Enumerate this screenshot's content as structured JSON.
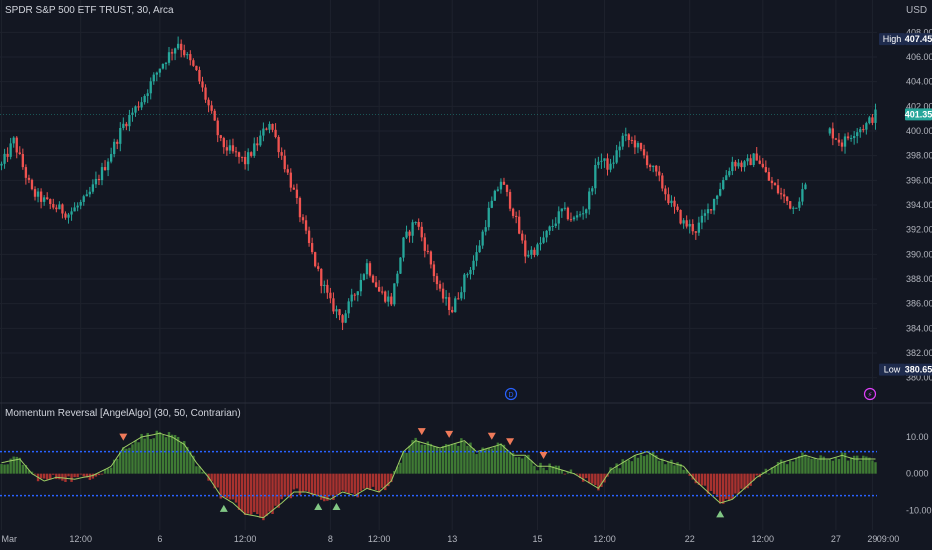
{
  "header": {
    "title": "SPDR S&P 500 ETF TRUST, 30, Arca",
    "currency": "USD",
    "indicator_title": "Momentum Reversal [AngelAlgo] (30, 50, Contrarian)"
  },
  "colors": {
    "background": "#131722",
    "up": "#26a69a",
    "down": "#ef5350",
    "osc_positive": "#3f7a34",
    "osc_negative": "#a8322f",
    "osc_line": "#9ccc65",
    "band": "#2962ff",
    "hl_tag": "#1e2b4d"
  },
  "tags": {
    "high_label": "High",
    "high_value": "407.45",
    "low_label": "Low",
    "low_value": "380.65",
    "last_value": "401.35"
  },
  "markers": {
    "dividend": "D",
    "split": "⚡"
  },
  "chart_data": [
    {
      "type": "candlestick",
      "title": "SPDR S&P 500 ETF TRUST, 30, Arca",
      "ylim": [
        379,
        409
      ],
      "y_ticks": [
        "380.00",
        "382.00",
        "384.00",
        "386.00",
        "388.00",
        "390.00",
        "392.00",
        "394.00",
        "396.00",
        "398.00",
        "400.00",
        "402.00",
        "404.00",
        "406.00",
        "408.00"
      ],
      "x_ticks": [
        "Mar",
        "12:00",
        "6",
        "12:00",
        "8",
        "12:00",
        "13",
        "15",
        "12:00",
        "22",
        "12:00",
        "27",
        "29",
        "09:00"
      ],
      "high": 407.45,
      "low": 380.65,
      "last": 401.35,
      "close_path": [
        {
          "t": 0,
          "v": 397.2
        },
        {
          "t": 4,
          "v": 399.2
        },
        {
          "t": 10,
          "v": 395.0
        },
        {
          "t": 16,
          "v": 394.0
        },
        {
          "t": 22,
          "v": 393.3
        },
        {
          "t": 28,
          "v": 394.5
        },
        {
          "t": 34,
          "v": 397.2
        },
        {
          "t": 40,
          "v": 400.5
        },
        {
          "t": 46,
          "v": 402.5
        },
        {
          "t": 52,
          "v": 405.2
        },
        {
          "t": 58,
          "v": 407.2
        },
        {
          "t": 64,
          "v": 404.7
        },
        {
          "t": 68,
          "v": 402.0
        },
        {
          "t": 72,
          "v": 399.0
        },
        {
          "t": 76,
          "v": 398.2
        },
        {
          "t": 80,
          "v": 397.5
        },
        {
          "t": 84,
          "v": 399.0
        },
        {
          "t": 88,
          "v": 400.8
        },
        {
          "t": 92,
          "v": 398.0
        },
        {
          "t": 96,
          "v": 395.0
        },
        {
          "t": 100,
          "v": 391.5
        },
        {
          "t": 104,
          "v": 388.5
        },
        {
          "t": 108,
          "v": 386.0
        },
        {
          "t": 112,
          "v": 384.8
        },
        {
          "t": 116,
          "v": 386.8
        },
        {
          "t": 120,
          "v": 389.2
        },
        {
          "t": 124,
          "v": 387.0
        },
        {
          "t": 128,
          "v": 386.2
        },
        {
          "t": 132,
          "v": 391.0
        },
        {
          "t": 136,
          "v": 392.8
        },
        {
          "t": 140,
          "v": 390.0
        },
        {
          "t": 144,
          "v": 386.8
        },
        {
          "t": 148,
          "v": 385.5
        },
        {
          "t": 152,
          "v": 388.0
        },
        {
          "t": 156,
          "v": 390.0
        },
        {
          "t": 160,
          "v": 393.5
        },
        {
          "t": 164,
          "v": 396.0
        },
        {
          "t": 168,
          "v": 393.5
        },
        {
          "t": 172,
          "v": 390.0
        },
        {
          "t": 176,
          "v": 390.5
        },
        {
          "t": 180,
          "v": 392.0
        },
        {
          "t": 184,
          "v": 393.5
        },
        {
          "t": 188,
          "v": 392.8
        },
        {
          "t": 192,
          "v": 393.8
        },
        {
          "t": 196,
          "v": 397.8
        },
        {
          "t": 200,
          "v": 397.0
        },
        {
          "t": 204,
          "v": 399.5
        },
        {
          "t": 208,
          "v": 399.0
        },
        {
          "t": 212,
          "v": 397.6
        },
        {
          "t": 216,
          "v": 396.0
        },
        {
          "t": 220,
          "v": 394.0
        },
        {
          "t": 224,
          "v": 392.5
        },
        {
          "t": 228,
          "v": 392.0
        },
        {
          "t": 232,
          "v": 393.5
        },
        {
          "t": 236,
          "v": 395.5
        },
        {
          "t": 240,
          "v": 397.5
        },
        {
          "t": 244,
          "v": 397.2
        },
        {
          "t": 248,
          "v": 398.0
        },
        {
          "t": 252,
          "v": 396.0
        },
        {
          "t": 256,
          "v": 394.8
        },
        {
          "t": 260,
          "v": 393.8
        },
        {
          "t": 264,
          "v": 395.5
        }
      ],
      "after_gap": [
        {
          "t": 272,
          "v": 400.0
        },
        {
          "t": 276,
          "v": 399.0
        },
        {
          "t": 280,
          "v": 400.0
        },
        {
          "t": 284,
          "v": 400.5
        },
        {
          "t": 287,
          "v": 401.35
        }
      ]
    },
    {
      "type": "histogram",
      "title": "Momentum Reversal [AngelAlgo] (30, 50, Contrarian)",
      "ylim": [
        -14,
        16
      ],
      "y_ticks": [
        "10.00",
        "0.000",
        "-10.00"
      ],
      "upper_band": 6,
      "lower_band": -6,
      "osc_path": [
        {
          "t": 0,
          "v": 3
        },
        {
          "t": 6,
          "v": 4
        },
        {
          "t": 10,
          "v": 0
        },
        {
          "t": 14,
          "v": -2
        },
        {
          "t": 18,
          "v": -1
        },
        {
          "t": 24,
          "v": -1.5
        },
        {
          "t": 30,
          "v": -0.5
        },
        {
          "t": 36,
          "v": 2
        },
        {
          "t": 40,
          "v": 7
        },
        {
          "t": 46,
          "v": 10
        },
        {
          "t": 52,
          "v": 11
        },
        {
          "t": 56,
          "v": 10
        },
        {
          "t": 60,
          "v": 8
        },
        {
          "t": 64,
          "v": 3
        },
        {
          "t": 68,
          "v": -1
        },
        {
          "t": 72,
          "v": -6
        },
        {
          "t": 76,
          "v": -8
        },
        {
          "t": 80,
          "v": -11
        },
        {
          "t": 86,
          "v": -12
        },
        {
          "t": 92,
          "v": -8
        },
        {
          "t": 96,
          "v": -5
        },
        {
          "t": 100,
          "v": -5
        },
        {
          "t": 104,
          "v": -6
        },
        {
          "t": 108,
          "v": -7
        },
        {
          "t": 112,
          "v": -5
        },
        {
          "t": 116,
          "v": -6
        },
        {
          "t": 120,
          "v": -4
        },
        {
          "t": 124,
          "v": -5
        },
        {
          "t": 128,
          "v": -2
        },
        {
          "t": 132,
          "v": 6
        },
        {
          "t": 136,
          "v": 9
        },
        {
          "t": 140,
          "v": 8
        },
        {
          "t": 144,
          "v": 7
        },
        {
          "t": 148,
          "v": 8
        },
        {
          "t": 152,
          "v": 9
        },
        {
          "t": 156,
          "v": 6
        },
        {
          "t": 160,
          "v": 7
        },
        {
          "t": 164,
          "v": 8
        },
        {
          "t": 168,
          "v": 5
        },
        {
          "t": 172,
          "v": 5
        },
        {
          "t": 176,
          "v": 2
        },
        {
          "t": 180,
          "v": 2
        },
        {
          "t": 184,
          "v": 1
        },
        {
          "t": 188,
          "v": 0
        },
        {
          "t": 192,
          "v": -2
        },
        {
          "t": 196,
          "v": -4
        },
        {
          "t": 200,
          "v": 1
        },
        {
          "t": 204,
          "v": 3
        },
        {
          "t": 208,
          "v": 5
        },
        {
          "t": 212,
          "v": 6
        },
        {
          "t": 216,
          "v": 4
        },
        {
          "t": 220,
          "v": 3
        },
        {
          "t": 224,
          "v": 2
        },
        {
          "t": 228,
          "v": -2
        },
        {
          "t": 232,
          "v": -5
        },
        {
          "t": 236,
          "v": -8
        },
        {
          "t": 240,
          "v": -7
        },
        {
          "t": 244,
          "v": -4
        },
        {
          "t": 248,
          "v": -1
        },
        {
          "t": 252,
          "v": 1
        },
        {
          "t": 256,
          "v": 3
        },
        {
          "t": 260,
          "v": 4
        },
        {
          "t": 264,
          "v": 5
        },
        {
          "t": 268,
          "v": 4
        },
        {
          "t": 272,
          "v": 4
        },
        {
          "t": 276,
          "v": 5
        },
        {
          "t": 280,
          "v": 4
        },
        {
          "t": 284,
          "v": 4
        },
        {
          "t": 287,
          "v": 4
        }
      ],
      "sell_signals_t": [
        40,
        138,
        147,
        161,
        167,
        178
      ],
      "buy_signals_t": [
        73,
        104,
        110,
        236
      ]
    }
  ]
}
